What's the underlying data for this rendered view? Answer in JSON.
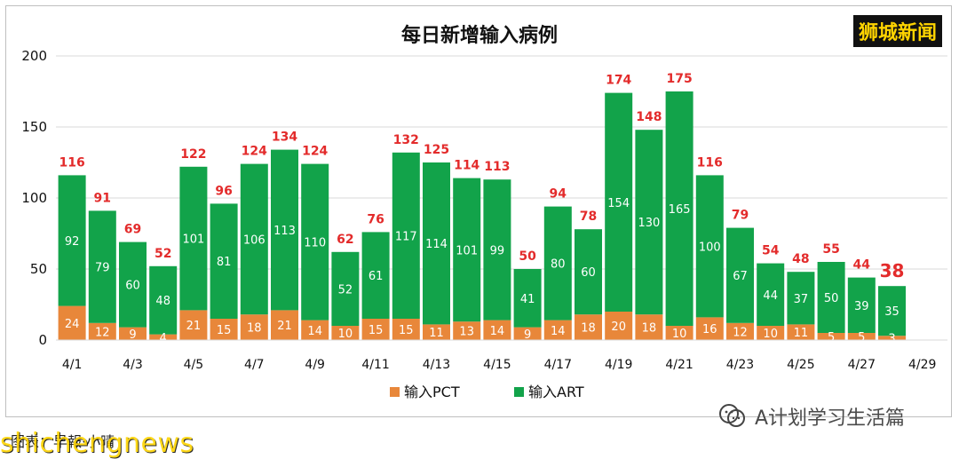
{
  "brand": {
    "text": "狮城新闻"
  },
  "footer": {
    "caption": "图表：早報·小晴",
    "watermark_en": "shichengnews",
    "watermark_cn": "A计划学习生活篇"
  },
  "chart_data": {
    "type": "bar",
    "stacked": true,
    "title": "每日新增输入病例",
    "categories": [
      "4/1",
      "4/2",
      "4/3",
      "4/4",
      "4/5",
      "4/6",
      "4/7",
      "4/8",
      "4/9",
      "4/10",
      "4/11",
      "4/12",
      "4/13",
      "4/14",
      "4/15",
      "4/16",
      "4/17",
      "4/18",
      "4/19",
      "4/20",
      "4/21",
      "4/22",
      "4/23",
      "4/24",
      "4/25",
      "4/26",
      "4/27",
      "4/28",
      "4/29"
    ],
    "x_tick_labels": [
      "4/1",
      "4/3",
      "4/5",
      "4/7",
      "4/9",
      "4/11",
      "4/13",
      "4/15",
      "4/17",
      "4/19",
      "4/21",
      "4/23",
      "4/25",
      "4/27",
      "4/29"
    ],
    "series": [
      {
        "name": "输入PCT",
        "color": "#e8873a",
        "values": [
          24,
          12,
          9,
          4,
          21,
          15,
          18,
          21,
          14,
          10,
          15,
          15,
          11,
          13,
          14,
          9,
          14,
          18,
          20,
          18,
          10,
          16,
          12,
          10,
          11,
          5,
          5,
          3,
          null
        ]
      },
      {
        "name": "输入ART",
        "color": "#12a34a",
        "values": [
          92,
          79,
          60,
          48,
          101,
          81,
          106,
          113,
          110,
          52,
          61,
          117,
          114,
          101,
          99,
          41,
          80,
          60,
          154,
          130,
          165,
          100,
          67,
          44,
          37,
          50,
          39,
          35,
          null
        ]
      }
    ],
    "totals": [
      116,
      91,
      69,
      52,
      122,
      96,
      124,
      134,
      124,
      62,
      76,
      132,
      125,
      114,
      113,
      50,
      94,
      78,
      174,
      148,
      175,
      116,
      79,
      54,
      48,
      55,
      44,
      38,
      null
    ],
    "highlight_last_total": true,
    "ylim": [
      0,
      200
    ],
    "y_ticks": [
      0,
      50,
      100,
      150,
      200
    ],
    "grid": true,
    "legend": "bottom",
    "total_label_color": "#e32b2b"
  }
}
